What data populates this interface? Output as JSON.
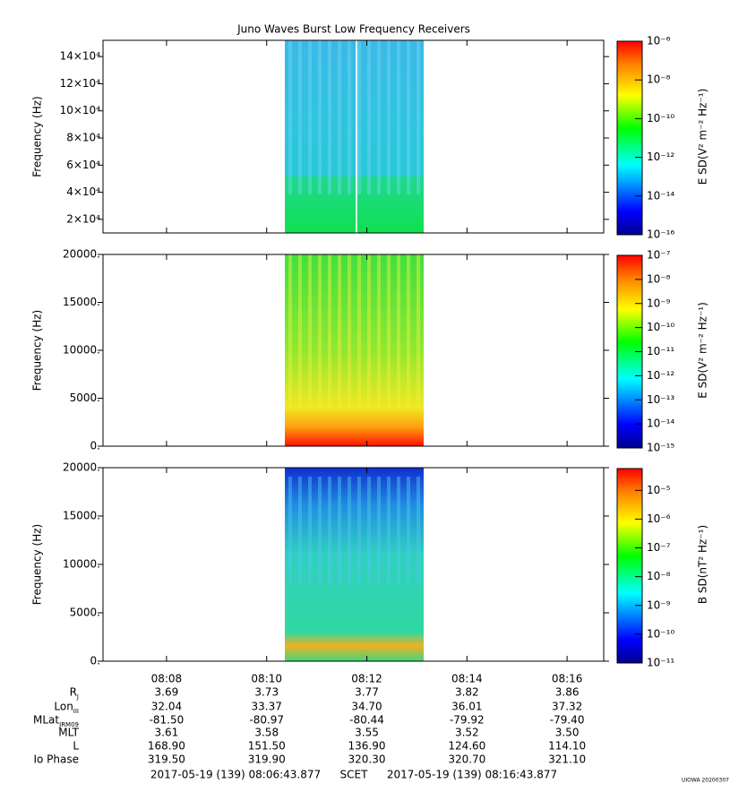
{
  "title": "Juno Waves Burst Low Frequency Receivers",
  "time_axis": {
    "xlim": [
      "08:06:43.877",
      "08:16:43.877"
    ],
    "xticks": [
      "08:08",
      "08:10",
      "08:12",
      "08:14",
      "08:16"
    ]
  },
  "chart_data": [
    {
      "type": "spectrogram",
      "ylabel": "Frequency (Hz)",
      "ylim": [
        10000,
        152000
      ],
      "yticks": [
        {
          "value": 20000,
          "label": "2×10⁴"
        },
        {
          "value": 40000,
          "label": "4×10⁴"
        },
        {
          "value": 60000,
          "label": "6×10⁴"
        },
        {
          "value": 80000,
          "label": "8×10⁴"
        },
        {
          "value": 100000,
          "label": "10×10⁴"
        },
        {
          "value": 120000,
          "label": "12×10⁴"
        },
        {
          "value": 140000,
          "label": "14×10⁴"
        }
      ],
      "zlabel": "E SD(V² m⁻² Hz⁻¹)",
      "zscale": "log",
      "zlim": [
        1e-16,
        1e-06
      ],
      "zticks": [
        {
          "value": 1e-16,
          "label": "10⁻¹⁶"
        },
        {
          "value": 1e-14,
          "label": "10⁻¹⁴"
        },
        {
          "value": 1e-12,
          "label": "10⁻¹²"
        },
        {
          "value": 1e-10,
          "label": "10⁻¹⁰"
        },
        {
          "value": 1e-08,
          "label": "10⁻⁸"
        },
        {
          "value": 1e-06,
          "label": "10⁻⁶"
        }
      ]
    },
    {
      "type": "spectrogram",
      "ylabel": "Frequency (Hz)",
      "ylim": [
        0,
        20000
      ],
      "yticks": [
        {
          "value": 0,
          "label": "0."
        },
        {
          "value": 5000,
          "label": "5000."
        },
        {
          "value": 10000,
          "label": "10000."
        },
        {
          "value": 15000,
          "label": "15000."
        },
        {
          "value": 20000,
          "label": "20000."
        }
      ],
      "zlabel": "E SD(V² m⁻² Hz⁻¹)",
      "zscale": "log",
      "zlim": [
        1e-15,
        1e-07
      ],
      "zticks": [
        {
          "value": 1e-15,
          "label": "10⁻¹⁵"
        },
        {
          "value": 1e-14,
          "label": "10⁻¹⁴"
        },
        {
          "value": 1e-13,
          "label": "10⁻¹³"
        },
        {
          "value": 1e-12,
          "label": "10⁻¹²"
        },
        {
          "value": 1e-11,
          "label": "10⁻¹¹"
        },
        {
          "value": 1e-10,
          "label": "10⁻¹⁰"
        },
        {
          "value": 1e-09,
          "label": "10⁻⁹"
        },
        {
          "value": 1e-08,
          "label": "10⁻⁸"
        },
        {
          "value": 1e-07,
          "label": "10⁻⁷"
        }
      ]
    },
    {
      "type": "spectrogram",
      "ylabel": "Frequency (Hz)",
      "ylim": [
        0,
        20000
      ],
      "yticks": [
        {
          "value": 0,
          "label": "0."
        },
        {
          "value": 5000,
          "label": "5000."
        },
        {
          "value": 10000,
          "label": "10000."
        },
        {
          "value": 15000,
          "label": "15000."
        },
        {
          "value": 20000,
          "label": "20000."
        }
      ],
      "zlabel": "B SD(nT² Hz⁻¹)",
      "zscale": "log",
      "zlim": [
        1e-11,
        5.7e-05
      ],
      "zticks": [
        {
          "value": 1e-11,
          "label": "10⁻¹¹"
        },
        {
          "value": 1e-10,
          "label": "10⁻¹⁰"
        },
        {
          "value": 1e-09,
          "label": "10⁻⁹"
        },
        {
          "value": 1e-08,
          "label": "10⁻⁸"
        },
        {
          "value": 1e-07,
          "label": "10⁻⁷"
        },
        {
          "value": 1e-06,
          "label": "10⁻⁶"
        },
        {
          "value": 1e-05,
          "label": "10⁻⁵"
        }
      ]
    }
  ],
  "ephemeris": {
    "rows": [
      {
        "label": "R",
        "sub": "J",
        "values": [
          "3.69",
          "3.73",
          "3.77",
          "3.82",
          "3.86"
        ]
      },
      {
        "label": "Lon",
        "sub": "III",
        "values": [
          "32.04",
          "33.37",
          "34.70",
          "36.01",
          "37.32"
        ]
      },
      {
        "label": "MLat",
        "sub": "JRM09",
        "values": [
          "-81.50",
          "-80.97",
          "-80.44",
          "-79.92",
          "-79.40"
        ]
      },
      {
        "label": "MLT",
        "values": [
          "3.61",
          "3.58",
          "3.55",
          "3.52",
          "3.50"
        ]
      },
      {
        "label": "L",
        "values": [
          "168.90",
          "151.50",
          "136.90",
          "124.60",
          "114.10"
        ]
      },
      {
        "label": "Io Phase",
        "values": [
          "319.50",
          "319.90",
          "320.30",
          "320.70",
          "321.10"
        ]
      }
    ]
  },
  "footer": {
    "start": "2017-05-19 (139) 08:06:43.877",
    "scet": "SCET",
    "end": "2017-05-19 (139) 08:16:43.877",
    "stamp": "UIOWA 20200307"
  }
}
